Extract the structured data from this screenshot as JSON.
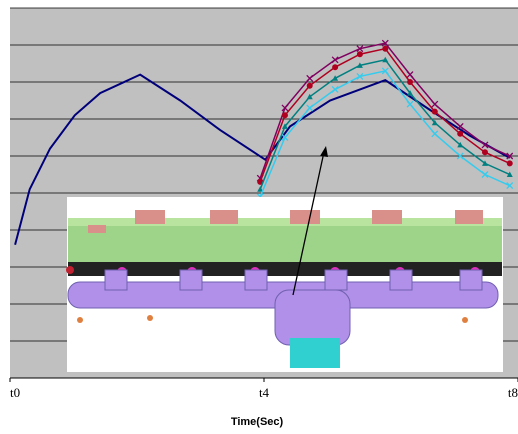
{
  "chart_data": {
    "type": "line",
    "xlabel": "Time(Sec)",
    "xlim": [
      0,
      8
    ],
    "xticks": [
      {
        "value": 0,
        "label": "t0"
      },
      {
        "value": 4,
        "label": "t4"
      },
      {
        "value": 8,
        "label": "t8"
      }
    ],
    "ylim": [
      0,
      10
    ],
    "yticks": [
      0,
      1,
      2,
      3,
      4,
      5,
      6,
      7,
      8,
      9,
      10
    ],
    "y_tick_labels": false,
    "grid": true,
    "series": [
      {
        "color": "#00007a",
        "marker": "none",
        "x": [
          0.08,
          0.31,
          0.63,
          1.02,
          1.42,
          2.05,
          2.68,
          3.31,
          4.02,
          4.41,
          5.04,
          5.91,
          6.61,
          7.24,
          7.87
        ],
        "values": [
          3.6,
          5.1,
          6.2,
          7.1,
          7.7,
          8.2,
          7.5,
          6.7,
          5.9,
          6.8,
          7.5,
          8.05,
          7.25,
          6.55,
          5.95
        ]
      },
      {
        "color": "#800060",
        "marker": "x",
        "x": [
          3.94,
          4.33,
          4.72,
          5.12,
          5.51,
          5.91,
          6.3,
          6.69,
          7.09,
          7.48,
          7.87
        ],
        "values": [
          5.4,
          7.3,
          8.1,
          8.6,
          8.9,
          9.05,
          8.2,
          7.4,
          6.8,
          6.3,
          6.0
        ]
      },
      {
        "color": "#b00020",
        "marker": "circle",
        "x": [
          3.94,
          4.33,
          4.72,
          5.12,
          5.51,
          5.91,
          6.3,
          6.69,
          7.09,
          7.48,
          7.87
        ],
        "values": [
          5.3,
          7.1,
          7.9,
          8.4,
          8.75,
          8.9,
          8.0,
          7.2,
          6.6,
          6.1,
          5.8
        ]
      },
      {
        "color": "#008080",
        "marker": "triangle",
        "x": [
          3.94,
          4.33,
          4.72,
          5.12,
          5.51,
          5.91,
          6.3,
          6.69,
          7.09,
          7.48,
          7.87
        ],
        "values": [
          5.1,
          6.8,
          7.6,
          8.1,
          8.45,
          8.6,
          7.7,
          6.9,
          6.3,
          5.8,
          5.5
        ]
      },
      {
        "color": "#33ccee",
        "marker": "x",
        "x": [
          3.94,
          4.33,
          4.72,
          5.12,
          5.51,
          5.91,
          6.3,
          6.69,
          7.09,
          7.48,
          7.87
        ],
        "values": [
          4.9,
          6.5,
          7.3,
          7.8,
          8.15,
          8.3,
          7.4,
          6.6,
          6.0,
          5.5,
          5.2
        ]
      }
    ]
  }
}
